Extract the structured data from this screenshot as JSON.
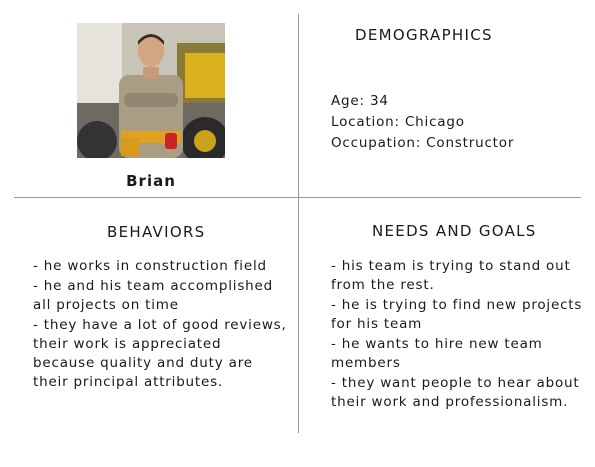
{
  "persona": {
    "name": "Brian"
  },
  "demographics": {
    "heading": "DEMOGRAPHICS",
    "age": "Age:  34",
    "location": "Location: Chicago",
    "occupation": "Occupation: Constructor"
  },
  "behaviors": {
    "heading": "BEHAVIORS",
    "items": [
      "- he works in construction field",
      "- he and his team accomplished all projects on time",
      "- they have a lot of good reviews, their work is appreciated because quality and duty are their principal attributes."
    ]
  },
  "needs": {
    "heading": "NEEDS AND GOALS",
    "items": [
      "- his team is trying to stand out from the rest.",
      "- he is trying to find new projects for his team",
      "- he wants to hire new team members",
      "- they want people to hear about their work and professionalism."
    ]
  },
  "colors": {
    "divider": "#9a9a9a",
    "text": "#1a1a1a"
  }
}
